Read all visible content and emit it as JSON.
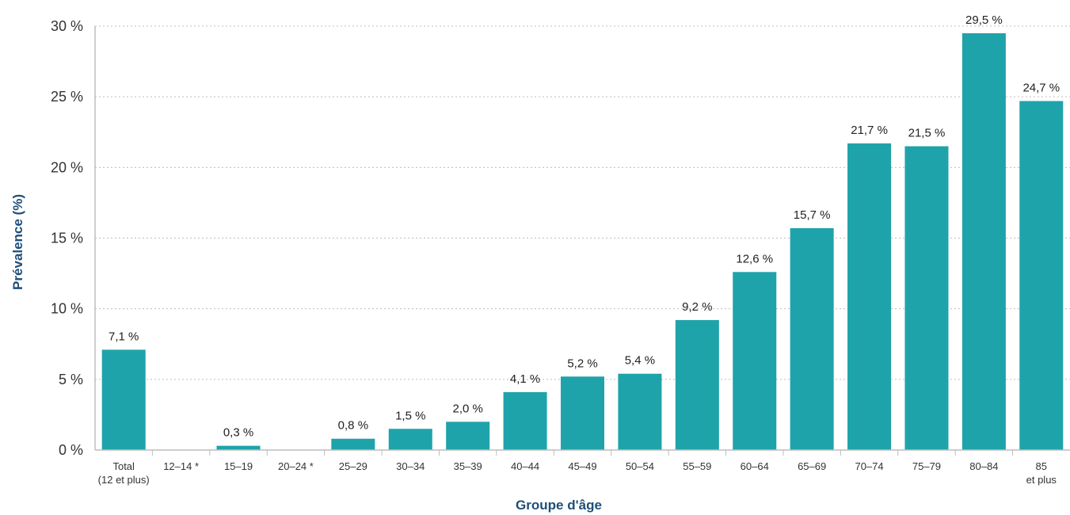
{
  "chart_data": {
    "type": "bar",
    "xlabel": "Groupe d'âge",
    "ylabel": "Prévalence (%)",
    "ylim": [
      0,
      30
    ],
    "yticks": [
      0,
      5,
      10,
      15,
      20,
      25,
      30
    ],
    "ytick_labels": [
      "0 %",
      "5 %",
      "10 %",
      "15 %",
      "20 %",
      "25 %",
      "30 %"
    ],
    "grid": true,
    "categories": [
      [
        "Total",
        "(12 et plus)"
      ],
      [
        "12–14 *"
      ],
      [
        "15–19"
      ],
      [
        "20–24 *"
      ],
      [
        "25–29"
      ],
      [
        "30–34"
      ],
      [
        "35–39"
      ],
      [
        "40–44"
      ],
      [
        "45–49"
      ],
      [
        "50–54"
      ],
      [
        "55–59"
      ],
      [
        "60–64"
      ],
      [
        "65–69"
      ],
      [
        "70–74"
      ],
      [
        "75–79"
      ],
      [
        "80–84"
      ],
      [
        "85",
        "et plus"
      ]
    ],
    "values": [
      7.1,
      null,
      0.3,
      null,
      0.8,
      1.5,
      2.0,
      4.1,
      5.2,
      5.4,
      9.2,
      12.6,
      15.7,
      21.7,
      21.5,
      29.5,
      24.7
    ],
    "data_labels": [
      "7,1 %",
      "",
      "0,3 %",
      "",
      "0,8 %",
      "1,5 %",
      "2,0 %",
      "4,1 %",
      "5,2 %",
      "5,4 %",
      "9,2 %",
      "12,6 %",
      "15,7 %",
      "21,7 %",
      "21,5 %",
      "29,5 %",
      "24,7 %"
    ],
    "colors": {
      "bar": "#1fa3aa",
      "axis_title": "#1f4e79",
      "grid": "#bdbdbd",
      "text": "#333333"
    }
  }
}
